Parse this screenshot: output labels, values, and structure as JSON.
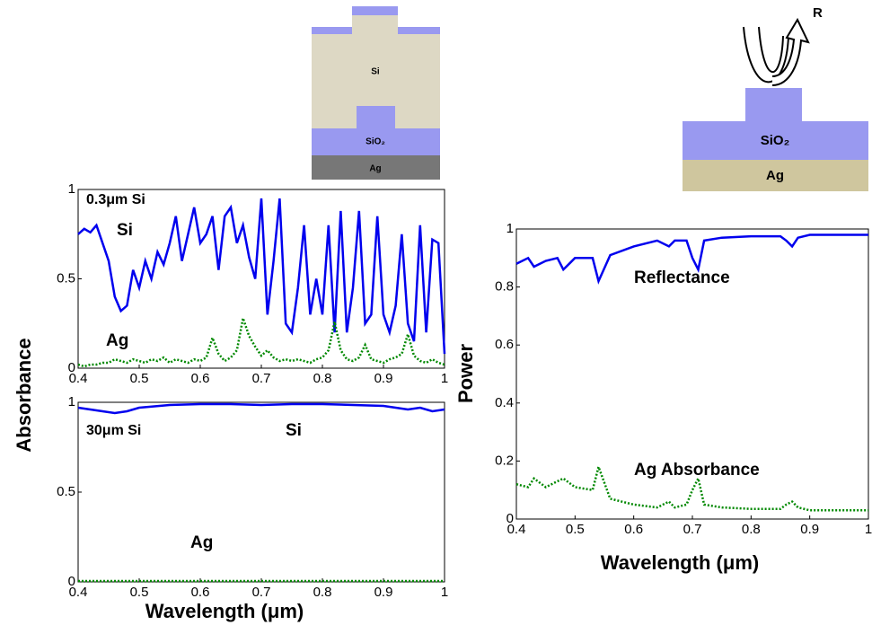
{
  "chart_data": [
    {
      "type": "line",
      "ylabel": "Absorbance",
      "annotations": [
        "0.3μm Si",
        "Si",
        "Ag"
      ],
      "x": [
        0.4,
        0.41,
        0.42,
        0.43,
        0.44,
        0.45,
        0.46,
        0.47,
        0.48,
        0.49,
        0.5,
        0.51,
        0.52,
        0.53,
        0.54,
        0.55,
        0.56,
        0.57,
        0.58,
        0.59,
        0.6,
        0.61,
        0.62,
        0.63,
        0.64,
        0.65,
        0.66,
        0.67,
        0.68,
        0.69,
        0.7,
        0.71,
        0.72,
        0.73,
        0.74,
        0.75,
        0.76,
        0.77,
        0.78,
        0.79,
        0.8,
        0.81,
        0.82,
        0.83,
        0.84,
        0.85,
        0.86,
        0.87,
        0.88,
        0.89,
        0.9,
        0.91,
        0.92,
        0.93,
        0.94,
        0.95,
        0.96,
        0.97,
        0.98,
        0.99,
        1.0
      ],
      "series": [
        {
          "color": "#0000ee",
          "style": "solid",
          "values": [
            0.75,
            0.78,
            0.76,
            0.8,
            0.7,
            0.6,
            0.4,
            0.32,
            0.35,
            0.55,
            0.45,
            0.6,
            0.5,
            0.65,
            0.58,
            0.7,
            0.85,
            0.6,
            0.75,
            0.9,
            0.7,
            0.75,
            0.85,
            0.55,
            0.85,
            0.9,
            0.7,
            0.8,
            0.62,
            0.5,
            0.95,
            0.3,
            0.6,
            0.95,
            0.25,
            0.2,
            0.45,
            0.8,
            0.3,
            0.5,
            0.3,
            0.8,
            0.2,
            0.88,
            0.2,
            0.45,
            0.88,
            0.25,
            0.3,
            0.85,
            0.3,
            0.2,
            0.35,
            0.75,
            0.25,
            0.15,
            0.8,
            0.2,
            0.72,
            0.7,
            0.08
          ]
        },
        {
          "color": "#008800",
          "style": "dotted",
          "values": [
            0.02,
            0.01,
            0.02,
            0.02,
            0.03,
            0.03,
            0.05,
            0.04,
            0.03,
            0.05,
            0.04,
            0.03,
            0.05,
            0.04,
            0.06,
            0.03,
            0.05,
            0.04,
            0.03,
            0.05,
            0.04,
            0.06,
            0.17,
            0.08,
            0.04,
            0.06,
            0.1,
            0.28,
            0.18,
            0.12,
            0.07,
            0.1,
            0.06,
            0.04,
            0.05,
            0.04,
            0.05,
            0.04,
            0.03,
            0.05,
            0.06,
            0.1,
            0.26,
            0.1,
            0.05,
            0.04,
            0.06,
            0.13,
            0.05,
            0.04,
            0.03,
            0.05,
            0.06,
            0.08,
            0.19,
            0.07,
            0.04,
            0.03,
            0.05,
            0.03,
            0.02
          ]
        }
      ],
      "xlim": [
        0.4,
        1
      ],
      "ylim": [
        0,
        1
      ],
      "xticks": [
        0.4,
        0.5,
        0.6,
        0.7,
        0.8,
        0.9,
        1
      ],
      "yticks": [
        0,
        0.5,
        1
      ]
    },
    {
      "type": "line",
      "xlabel": "Wavelength (μm)",
      "annotations": [
        "30μm Si",
        "Si",
        "Ag"
      ],
      "x": [
        0.4,
        0.42,
        0.44,
        0.46,
        0.48,
        0.5,
        0.55,
        0.6,
        0.65,
        0.7,
        0.75,
        0.8,
        0.85,
        0.9,
        0.92,
        0.94,
        0.96,
        0.98,
        1.0
      ],
      "series": [
        {
          "color": "#0000ee",
          "style": "solid",
          "values": [
            0.97,
            0.96,
            0.95,
            0.94,
            0.95,
            0.97,
            0.985,
            0.99,
            0.99,
            0.985,
            0.99,
            0.99,
            0.985,
            0.98,
            0.97,
            0.96,
            0.97,
            0.95,
            0.96
          ]
        },
        {
          "color": "#008800",
          "style": "dotted",
          "values": [
            0.005,
            0.005,
            0.005,
            0.005,
            0.005,
            0.005,
            0.005,
            0.005,
            0.005,
            0.005,
            0.005,
            0.005,
            0.005,
            0.005,
            0.005,
            0.005,
            0.005,
            0.005,
            0.005
          ]
        }
      ],
      "xlim": [
        0.4,
        1
      ],
      "ylim": [
        0,
        1
      ],
      "xticks": [
        0.4,
        0.5,
        0.6,
        0.7,
        0.8,
        0.9,
        1
      ],
      "yticks": [
        0,
        0.5,
        1
      ]
    },
    {
      "type": "line",
      "xlabel": "Wavelength (μm)",
      "ylabel": "Power",
      "annotations": [
        "Reflectance",
        "Ag Absorbance"
      ],
      "x": [
        0.4,
        0.42,
        0.43,
        0.45,
        0.47,
        0.48,
        0.5,
        0.53,
        0.54,
        0.56,
        0.6,
        0.64,
        0.66,
        0.67,
        0.69,
        0.7,
        0.71,
        0.72,
        0.75,
        0.8,
        0.85,
        0.86,
        0.87,
        0.88,
        0.9,
        0.95,
        1.0
      ],
      "series": [
        {
          "color": "#0000ee",
          "style": "solid",
          "values": [
            0.88,
            0.9,
            0.87,
            0.89,
            0.9,
            0.86,
            0.9,
            0.9,
            0.82,
            0.91,
            0.94,
            0.96,
            0.94,
            0.96,
            0.96,
            0.9,
            0.86,
            0.96,
            0.97,
            0.975,
            0.975,
            0.96,
            0.94,
            0.97,
            0.98,
            0.98,
            0.98
          ]
        },
        {
          "color": "#008800",
          "style": "dotted",
          "values": [
            0.12,
            0.11,
            0.14,
            0.11,
            0.13,
            0.14,
            0.11,
            0.1,
            0.18,
            0.07,
            0.05,
            0.04,
            0.06,
            0.04,
            0.05,
            0.1,
            0.14,
            0.05,
            0.04,
            0.035,
            0.035,
            0.05,
            0.06,
            0.04,
            0.03,
            0.03,
            0.03
          ]
        }
      ],
      "xlim": [
        0.4,
        1
      ],
      "ylim": [
        0,
        1
      ],
      "xticks": [
        0.4,
        0.5,
        0.6,
        0.7,
        0.8,
        0.9,
        1
      ],
      "yticks": [
        0,
        0.2,
        0.4,
        0.6,
        0.8,
        1
      ]
    }
  ],
  "diagrams": {
    "left": {
      "si": "Si",
      "sio2": "SiO₂",
      "ag": "Ag"
    },
    "right": {
      "r": "R",
      "sio2": "SiO₂",
      "ag": "Ag"
    }
  }
}
